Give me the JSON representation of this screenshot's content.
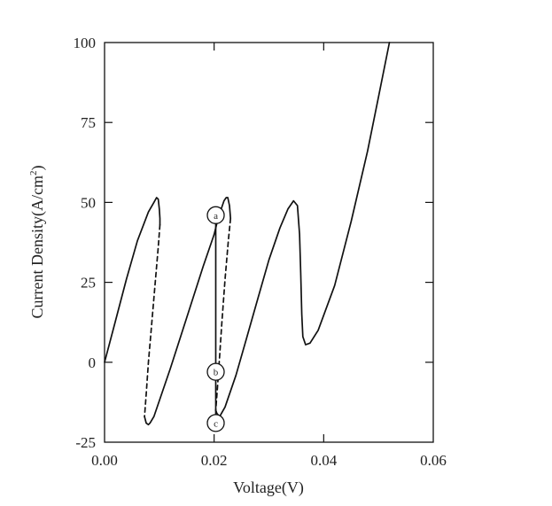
{
  "chart_data": {
    "type": "line",
    "xlabel": "Voltage(V)",
    "ylabel_main": "Current Density(A/cm",
    "ylabel_sup": "2",
    "ylabel_close": ")",
    "xlim": [
      0.0,
      0.06
    ],
    "ylim": [
      -25,
      100
    ],
    "x_ticks": [
      0.0,
      0.02,
      0.04,
      0.06
    ],
    "x_tick_labels": [
      "0.00",
      "0.02",
      "0.04",
      "0.06"
    ],
    "y_ticks": [
      -25,
      0,
      25,
      50,
      75,
      100
    ],
    "y_tick_labels": [
      "-25",
      "0",
      "25",
      "50",
      "75",
      "100"
    ],
    "grid": false,
    "series": [
      {
        "style": "solid",
        "x": [
          0.0,
          0.002,
          0.004,
          0.006,
          0.008,
          0.009,
          0.0095,
          0.0098,
          0.01,
          0.0101,
          0.0101
        ],
        "y": [
          0.0,
          13,
          26,
          38,
          47,
          50,
          51.5,
          51,
          48,
          45,
          43
        ]
      },
      {
        "style": "dashed",
        "x": [
          0.0101,
          0.0098,
          0.0092,
          0.0085,
          0.008,
          0.0076,
          0.0073
        ],
        "y": [
          43,
          36,
          24,
          10,
          0,
          -10,
          -17
        ]
      },
      {
        "style": "solid",
        "x": [
          0.0073,
          0.0076,
          0.008,
          0.0083,
          0.009,
          0.012,
          0.015,
          0.018,
          0.02
        ],
        "y": [
          -17,
          -19,
          -19.5,
          -19,
          -17,
          -2,
          14,
          30,
          40
        ]
      },
      {
        "style": "solid",
        "x": [
          0.02,
          0.0205,
          0.021,
          0.0218,
          0.0222,
          0.0225,
          0.0228,
          0.023
        ],
        "y": [
          40,
          43.5,
          46.5,
          50.5,
          51.5,
          51.5,
          49,
          45
        ]
      },
      {
        "style": "dashed",
        "x": [
          0.023,
          0.0226,
          0.022,
          0.0214,
          0.021,
          0.0206,
          0.0203
        ],
        "y": [
          45,
          38,
          26,
          12,
          2,
          -8,
          -15
        ]
      },
      {
        "style": "solid",
        "x": [
          0.0203,
          0.0205,
          0.021,
          0.022,
          0.024,
          0.026,
          0.028,
          0.03,
          0.032,
          0.0335,
          0.0345,
          0.0352,
          0.0356,
          0.0358,
          0.036,
          0.0362,
          0.0367,
          0.0375,
          0.039,
          0.042,
          0.045,
          0.048,
          0.05,
          0.052
        ],
        "y": [
          -15,
          -16,
          -17,
          -14,
          -4,
          8,
          20,
          32,
          42,
          48,
          50.5,
          49,
          40,
          28,
          15,
          8,
          5.5,
          6,
          10,
          24,
          44,
          66,
          83,
          100
        ]
      },
      {
        "style": "solid",
        "x": [
          0.0203,
          0.0203
        ],
        "y": [
          46,
          -19
        ]
      }
    ],
    "annotations": [
      {
        "label": "a",
        "x": 0.0203,
        "y": 46
      },
      {
        "label": "b",
        "x": 0.0203,
        "y": -3
      },
      {
        "label": "c",
        "x": 0.0203,
        "y": -19
      }
    ]
  }
}
